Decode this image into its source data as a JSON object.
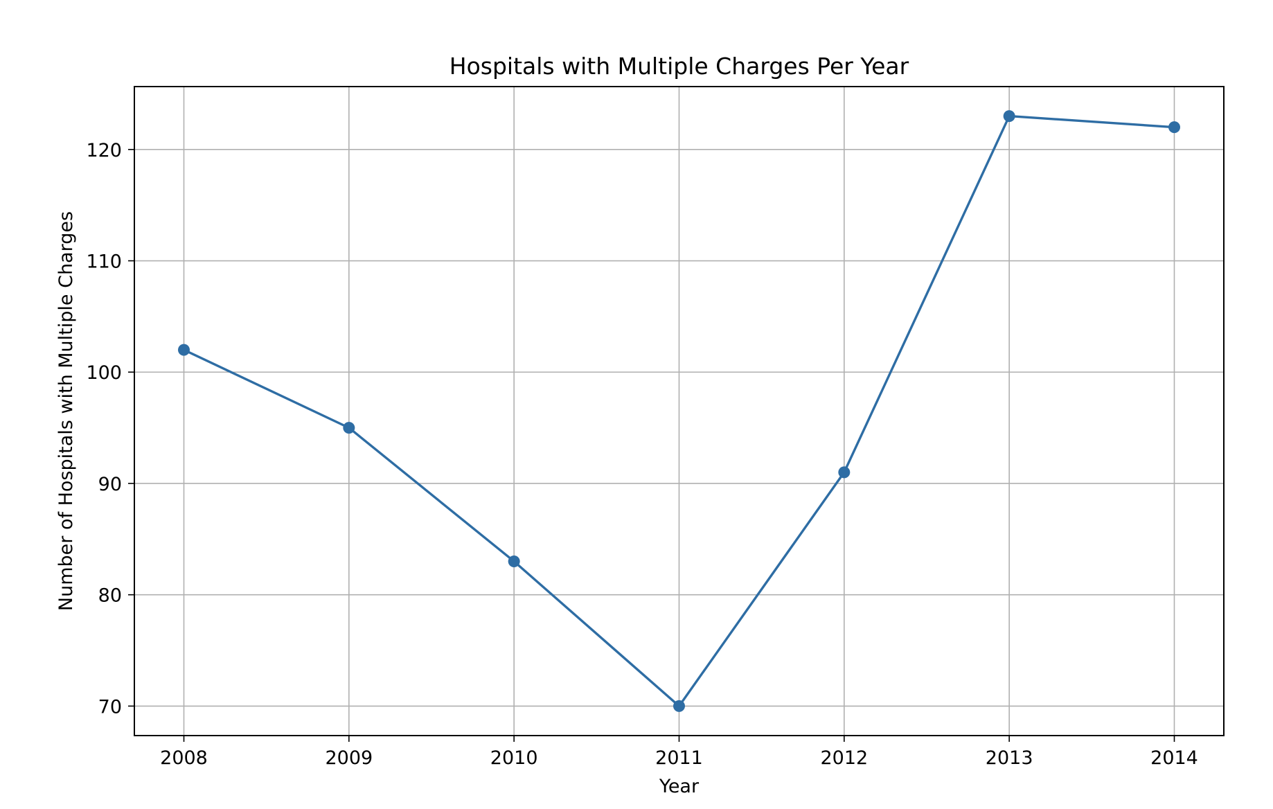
{
  "chart_data": {
    "type": "line",
    "title": "Hospitals with Multiple Charges Per Year",
    "xlabel": "Year",
    "ylabel": "Number of Hospitals with Multiple Charges",
    "x": [
      2008,
      2009,
      2010,
      2011,
      2012,
      2013,
      2014
    ],
    "x_tick_labels": [
      "2008",
      "2009",
      "2010",
      "2011",
      "2012",
      "2013",
      "2014"
    ],
    "y_ticks": [
      70,
      80,
      90,
      100,
      110,
      120
    ],
    "y_tick_labels": [
      "70",
      "80",
      "90",
      "100",
      "110",
      "120"
    ],
    "xlim": [
      2007.7,
      2014.3
    ],
    "ylim": [
      67.35,
      125.65
    ],
    "grid": true,
    "series": [
      {
        "values": [
          102,
          95,
          83,
          70,
          91,
          123,
          122
        ],
        "color": "#2e6da4",
        "marker": "circle"
      }
    ],
    "colors": {
      "line": "#2e6da4",
      "grid": "#b0b0b0",
      "axes": "#000000"
    }
  }
}
